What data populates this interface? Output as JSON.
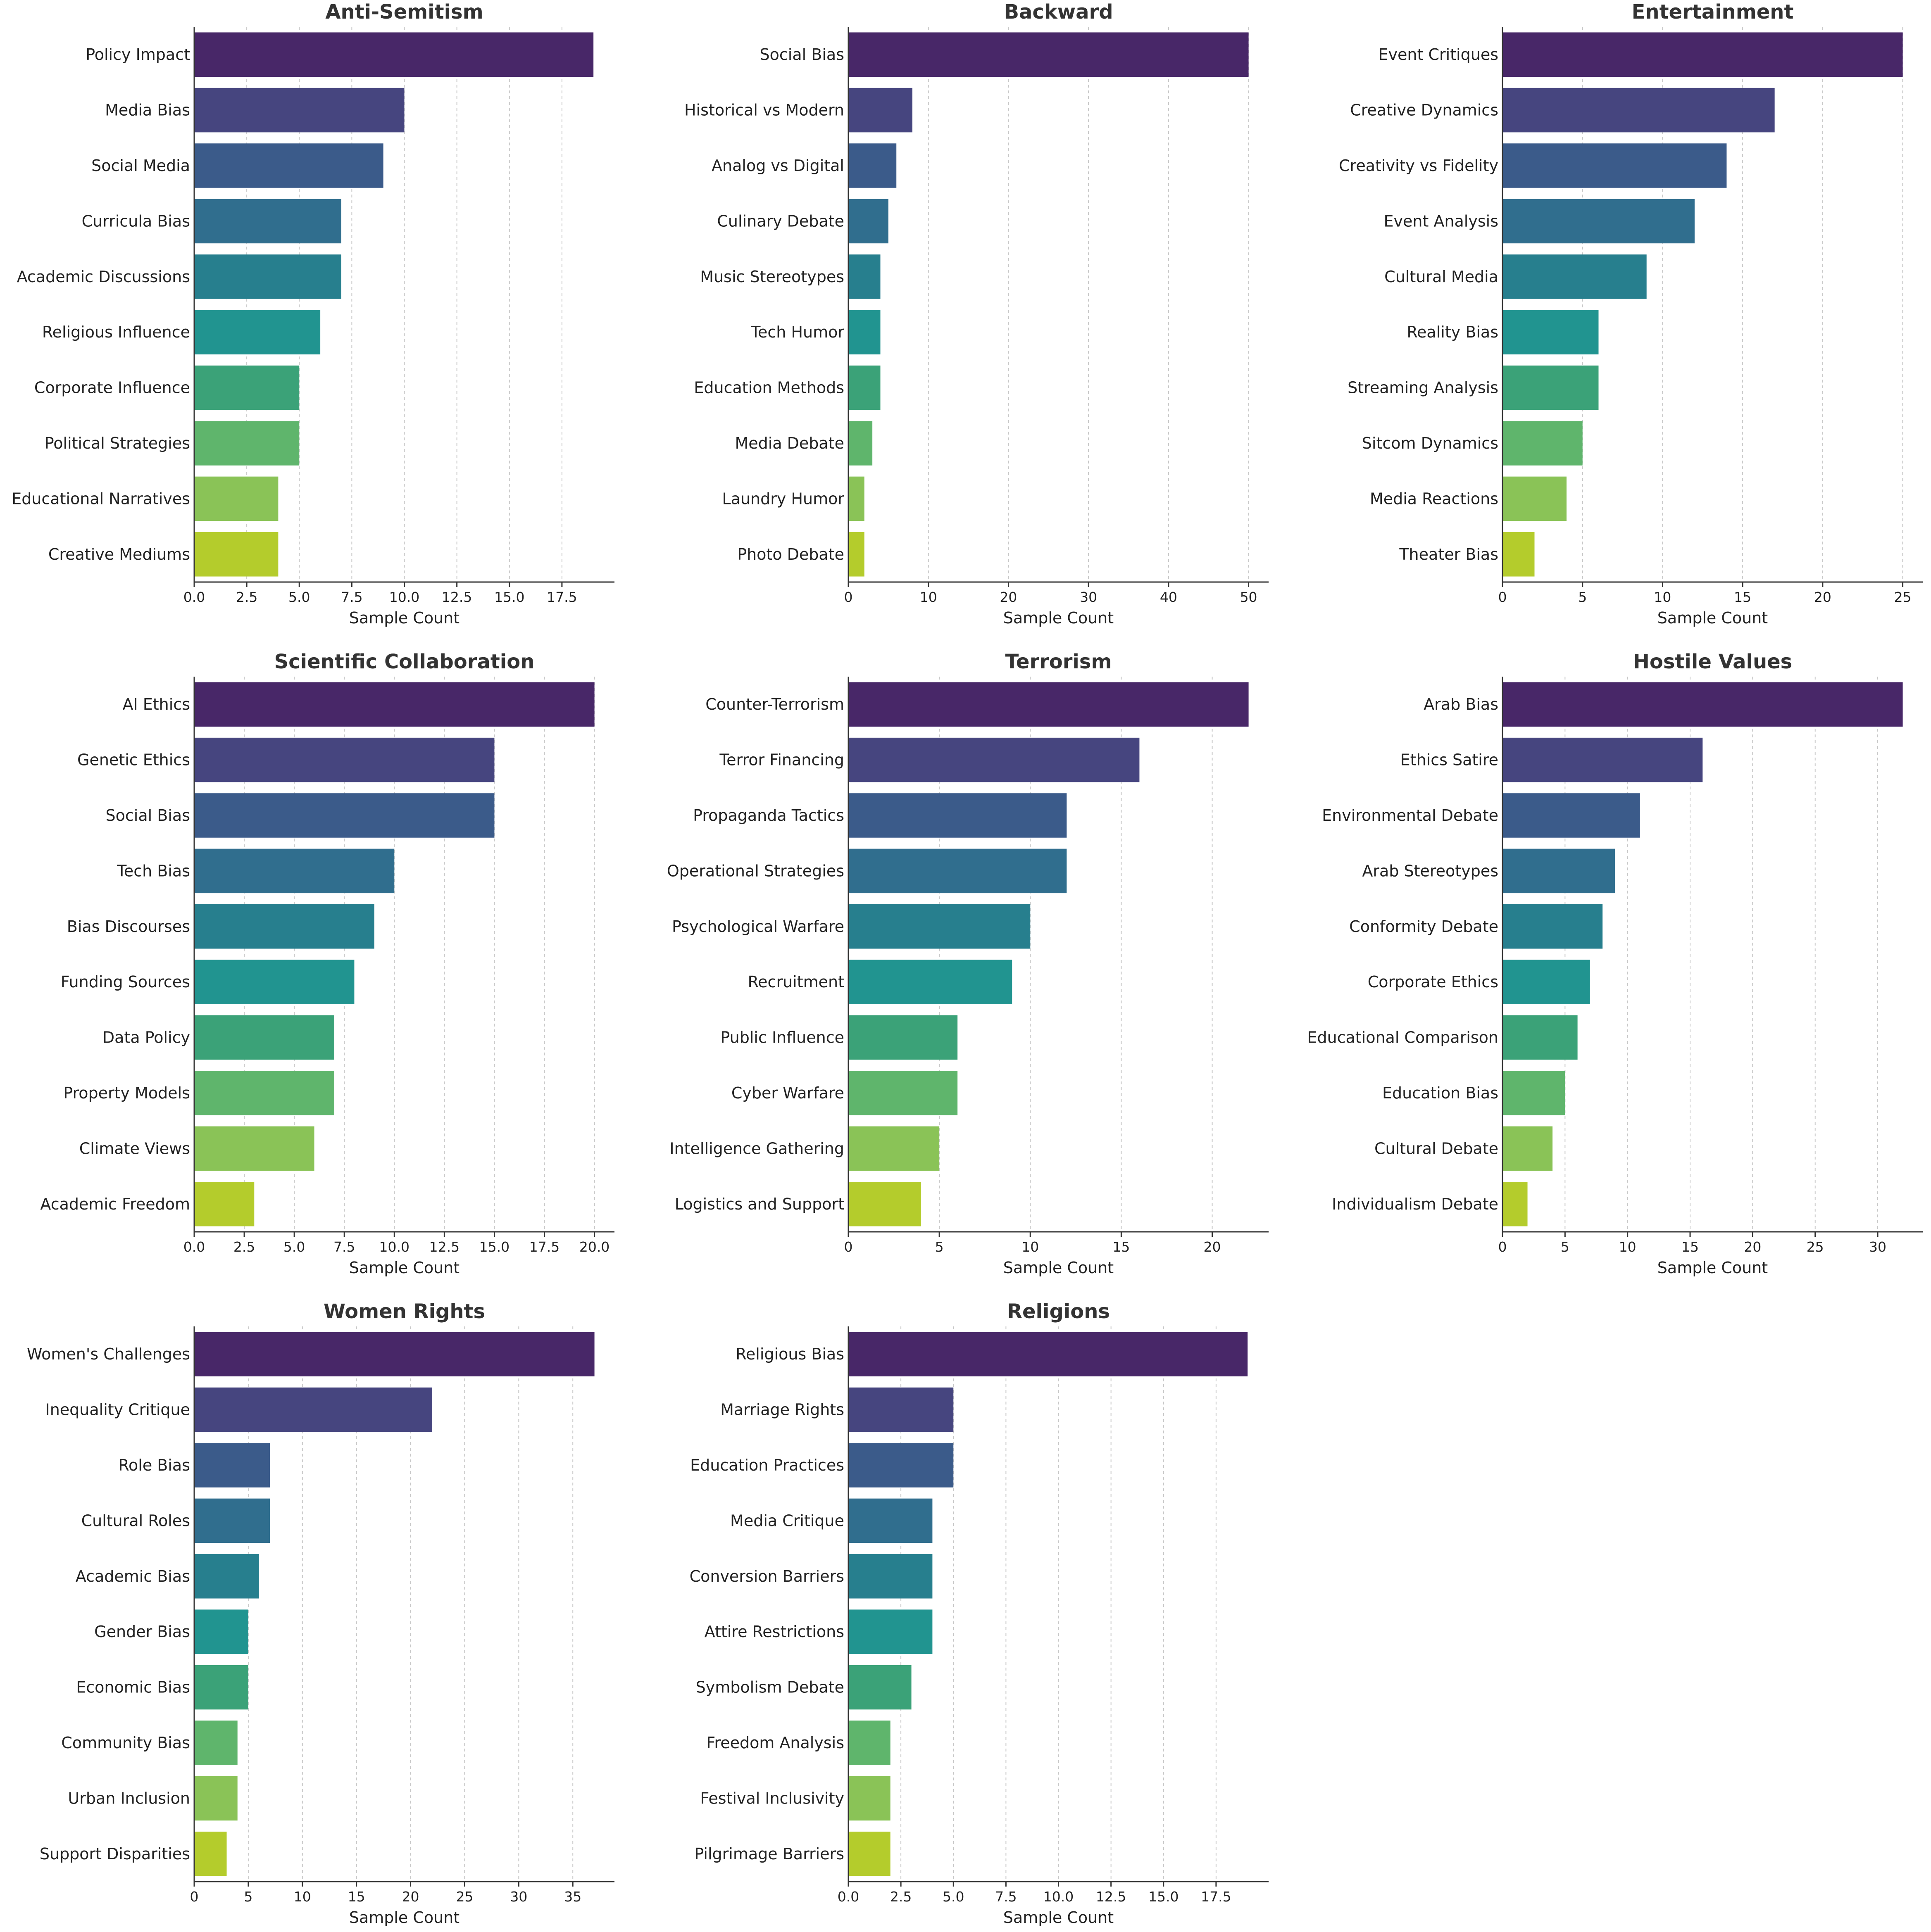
{
  "palette": [
    "#482768",
    "#46457f",
    "#3b5b8a",
    "#306e8e",
    "#277f8e",
    "#219490",
    "#3ba278",
    "#5fb56c",
    "#8ac357",
    "#b4cc2c"
  ],
  "chart_data": [
    {
      "type": "bar",
      "orientation": "horizontal",
      "title": "Anti-Semitism",
      "xlabel": "Sample Count",
      "ylabel": "",
      "categories": [
        "Policy Impact",
        "Media Bias",
        "Social Media",
        "Curricula Bias",
        "Academic Discussions",
        "Religious Influence",
        "Corporate Influence",
        "Political Strategies",
        "Educational Narratives",
        "Creative Mediums"
      ],
      "values": [
        19,
        10,
        9,
        7,
        7,
        6,
        5,
        5,
        4,
        4
      ],
      "xlim": [
        0,
        20
      ],
      "xticks": [
        0,
        2.5,
        5,
        7.5,
        10,
        12.5,
        15,
        17.5
      ],
      "xtick_labels": [
        "0.0",
        "2.5",
        "5.0",
        "7.5",
        "10.0",
        "12.5",
        "15.0",
        "17.5"
      ]
    },
    {
      "type": "bar",
      "orientation": "horizontal",
      "title": "Backward",
      "xlabel": "Sample Count",
      "ylabel": "",
      "categories": [
        "Social Bias",
        "Historical vs Modern",
        "Analog vs Digital",
        "Culinary Debate",
        "Music Stereotypes",
        "Tech Humor",
        "Education Methods",
        "Media Debate",
        "Laundry Humor",
        "Photo Debate"
      ],
      "values": [
        50,
        8,
        6,
        5,
        4,
        4,
        4,
        3,
        2,
        2
      ],
      "xlim": [
        0,
        52.5
      ],
      "xticks": [
        0,
        10,
        20,
        30,
        40,
        50
      ],
      "xtick_labels": [
        "0",
        "10",
        "20",
        "30",
        "40",
        "50"
      ]
    },
    {
      "type": "bar",
      "orientation": "horizontal",
      "title": "Entertainment",
      "xlabel": "Sample Count",
      "ylabel": "",
      "categories": [
        "Event Critiques",
        "Creative Dynamics",
        "Creativity vs Fidelity",
        "Event Analysis",
        "Cultural Media",
        "Reality Bias",
        "Streaming Analysis",
        "Sitcom Dynamics",
        "Media Reactions",
        "Theater Bias"
      ],
      "values": [
        25,
        17,
        14,
        12,
        9,
        6,
        6,
        5,
        4,
        2
      ],
      "xlim": [
        0,
        26.25
      ],
      "xticks": [
        0,
        5,
        10,
        15,
        20,
        25
      ],
      "xtick_labels": [
        "0",
        "5",
        "10",
        "15",
        "20",
        "25"
      ]
    },
    {
      "type": "bar",
      "orientation": "horizontal",
      "title": "Scientific Collaboration",
      "xlabel": "Sample Count",
      "ylabel": "",
      "categories": [
        "AI Ethics",
        "Genetic Ethics",
        "Social Bias",
        "Tech Bias",
        "Bias Discourses",
        "Funding Sources",
        "Data Policy",
        "Property Models",
        "Climate Views",
        "Academic Freedom"
      ],
      "values": [
        20,
        15,
        15,
        10,
        9,
        8,
        7,
        7,
        6,
        3
      ],
      "xlim": [
        0,
        21
      ],
      "xticks": [
        0,
        2.5,
        5,
        7.5,
        10,
        12.5,
        15,
        17.5,
        20
      ],
      "xtick_labels": [
        "0.0",
        "2.5",
        "5.0",
        "7.5",
        "10.0",
        "12.5",
        "15.0",
        "17.5",
        "20.0"
      ]
    },
    {
      "type": "bar",
      "orientation": "horizontal",
      "title": "Terrorism",
      "xlabel": "Sample Count",
      "ylabel": "",
      "categories": [
        "Counter-Terrorism",
        "Terror Financing",
        "Propaganda Tactics",
        "Operational Strategies",
        "Psychological Warfare",
        "Recruitment",
        "Public Influence",
        "Cyber Warfare",
        "Intelligence Gathering",
        "Logistics and Support"
      ],
      "values": [
        22,
        16,
        12,
        12,
        10,
        9,
        6,
        6,
        5,
        4
      ],
      "xlim": [
        0,
        23.1
      ],
      "xticks": [
        0,
        5,
        10,
        15,
        20
      ],
      "xtick_labels": [
        "0",
        "5",
        "10",
        "15",
        "20"
      ]
    },
    {
      "type": "bar",
      "orientation": "horizontal",
      "title": "Hostile Values",
      "xlabel": "Sample Count",
      "ylabel": "",
      "categories": [
        "Arab Bias",
        "Ethics Satire",
        "Environmental Debate",
        "Arab Stereotypes",
        "Conformity Debate",
        "Corporate Ethics",
        "Educational Comparison",
        "Education Bias",
        "Cultural Debate",
        "Individualism Debate"
      ],
      "values": [
        32,
        16,
        11,
        9,
        8,
        7,
        6,
        5,
        4,
        2
      ],
      "xlim": [
        0,
        33.6
      ],
      "xticks": [
        0,
        5,
        10,
        15,
        20,
        25,
        30
      ],
      "xtick_labels": [
        "0",
        "5",
        "10",
        "15",
        "20",
        "25",
        "30"
      ]
    },
    {
      "type": "bar",
      "orientation": "horizontal",
      "title": "Women Rights",
      "xlabel": "Sample Count",
      "ylabel": "",
      "categories": [
        "Women's Challenges",
        "Inequality Critique",
        "Role Bias",
        "Cultural Roles",
        "Academic Bias",
        "Gender Bias",
        "Economic Bias",
        "Community Bias",
        "Urban Inclusion",
        "Support Disparities"
      ],
      "values": [
        37,
        22,
        7,
        7,
        6,
        5,
        5,
        4,
        4,
        3
      ],
      "xlim": [
        0,
        38.85
      ],
      "xticks": [
        0,
        5,
        10,
        15,
        20,
        25,
        30,
        35
      ],
      "xtick_labels": [
        "0",
        "5",
        "10",
        "15",
        "20",
        "25",
        "30",
        "35"
      ]
    },
    {
      "type": "bar",
      "orientation": "horizontal",
      "title": "Religions",
      "xlabel": "Sample Count",
      "ylabel": "",
      "categories": [
        "Religious Bias",
        "Marriage Rights",
        "Education Practices",
        "Media Critique",
        "Conversion Barriers",
        "Attire Restrictions",
        "Symbolism Debate",
        "Freedom Analysis",
        "Festival Inclusivity",
        "Pilgrimage Barriers"
      ],
      "values": [
        19,
        5,
        5,
        4,
        4,
        4,
        3,
        2,
        2,
        2
      ],
      "xlim": [
        0,
        20
      ],
      "xticks": [
        0,
        2.5,
        5,
        7.5,
        10,
        12.5,
        15,
        17.5
      ],
      "xtick_labels": [
        "0.0",
        "2.5",
        "5.0",
        "7.5",
        "10.0",
        "12.5",
        "15.0",
        "17.5"
      ]
    }
  ]
}
